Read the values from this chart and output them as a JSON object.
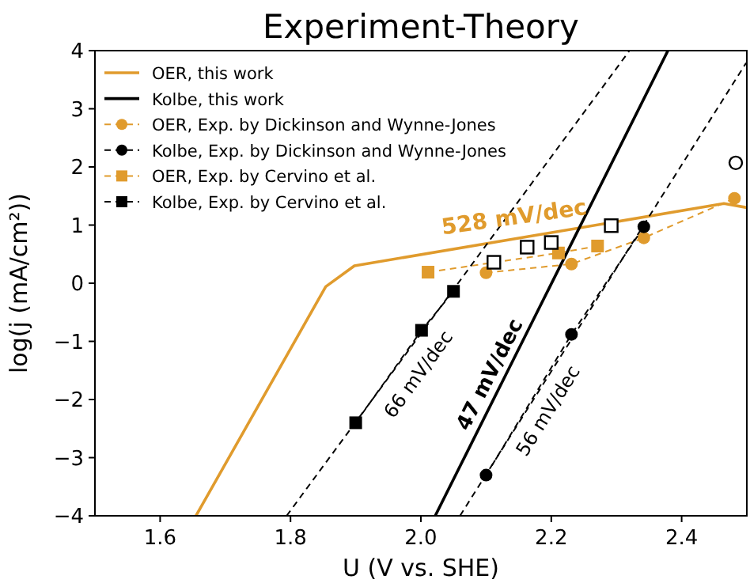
{
  "chart_data": {
    "type": "line",
    "title": "Experiment-Theory",
    "xlabel": "U (V vs. SHE)",
    "ylabel": "log(j (mA/cm²))",
    "xlim": [
      1.5,
      2.5
    ],
    "ylim": [
      -4,
      4
    ],
    "xticks": [
      1.6,
      1.8,
      {
        "value": 2,
        "label": "2.0"
      },
      2.2,
      2.4
    ],
    "yticks": [
      -4,
      -3,
      -2,
      -1,
      0,
      1,
      2,
      3,
      4
    ],
    "grid": false,
    "legend": "top left",
    "series": [
      {
        "name": "OER, this work",
        "color": "#e09b2d",
        "marker": "none",
        "line_style": "solid",
        "x": [
          1.655,
          1.854,
          1.898,
          2.465,
          2.5
        ],
        "values": [
          -4,
          -0.06,
          0.3,
          1.37,
          1.3
        ]
      },
      {
        "name": "Kolbe, this work",
        "color": "#000000",
        "marker": "none",
        "line_style": "solid",
        "x": [
          2.022,
          2.379
        ],
        "values": [
          -4,
          4
        ]
      },
      {
        "name": "OER, Exp. by Dickinson and Wynne-Jones",
        "color": "#e09b2d",
        "marker": "circle",
        "line_style": "dashed",
        "x": [
          2.1,
          2.231,
          2.342,
          2.481
        ],
        "values": [
          0.18,
          0.33,
          0.78,
          1.46
        ]
      },
      {
        "name": "Kolbe, Exp. by Dickinson and Wynne-Jones",
        "color": "#000000",
        "marker": "circle",
        "line_style": "dashed",
        "x": [
          2.1,
          2.231,
          2.342
        ],
        "values": [
          -3.3,
          -0.88,
          0.97
        ]
      },
      {
        "name": "OER, Exp. by Cervino et al.",
        "color": "#e09b2d",
        "marker": "square",
        "line_style": "dashed",
        "x": [
          2.011,
          2.211,
          2.271
        ],
        "values": [
          0.19,
          0.52,
          0.64
        ]
      },
      {
        "name": "Kolbe, Exp. by Cervino et al.",
        "color": "#000000",
        "marker": "square",
        "line_style": "dashed",
        "x": [
          1.9,
          2.001,
          2.05
        ],
        "values": [
          -2.4,
          -0.81,
          -0.14
        ]
      },
      {
        "color": "#000000",
        "marker": "none",
        "line_style": "dashed",
        "x": [
          1.794,
          2.32
        ],
        "values": [
          -4,
          4
        ]
      },
      {
        "color": "#000000",
        "marker": "none",
        "line_style": "dashed",
        "x": [
          2.06,
          2.499
        ],
        "values": [
          -4,
          3.79
        ]
      },
      {
        "color": "#000000",
        "type": "scatter",
        "marker": "square",
        "x": [
          2.112,
          2.163,
          2.2,
          2.292
        ],
        "values": [
          0.36,
          0.62,
          0.7,
          0.99
        ]
      },
      {
        "color": "#000000",
        "type": "scatter",
        "marker": "circle",
        "x": [
          2.483
        ],
        "values": [
          2.07
        ]
      }
    ],
    "annotations": [
      "528 mV/dec",
      "66 mV/dec",
      "47 mV/dec",
      "56 mV/dec"
    ]
  }
}
